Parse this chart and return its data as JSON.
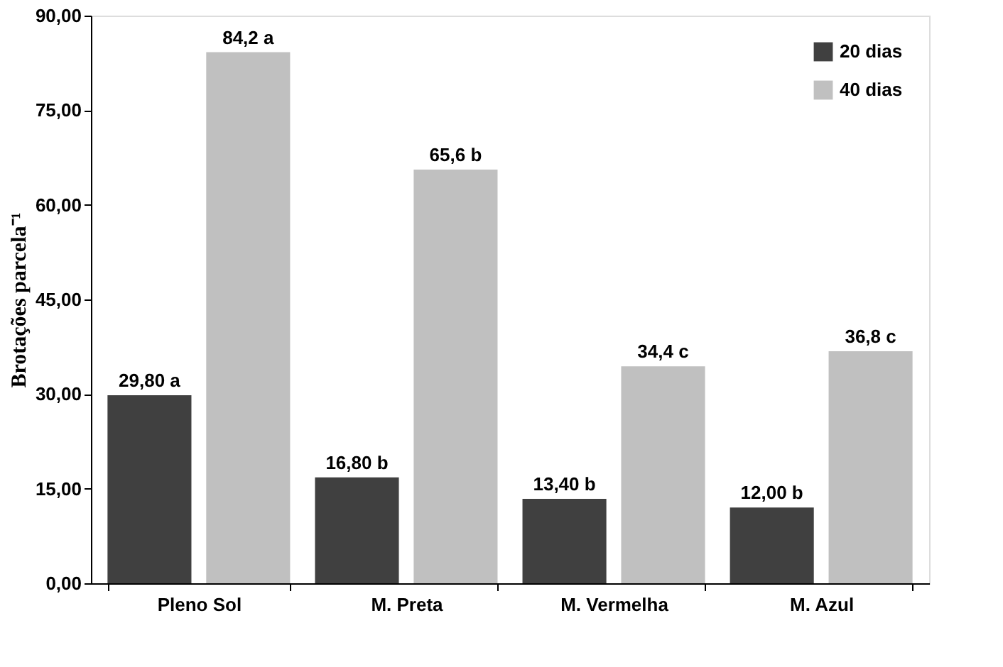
{
  "chart_data": {
    "type": "bar",
    "ylabel": "Brotações parcela⁻¹",
    "categories": [
      "Pleno Sol",
      "M. Preta",
      "M. Vermelha",
      "M. Azul"
    ],
    "series": [
      {
        "name": "20 dias",
        "color": "#404040",
        "values": [
          29.8,
          16.8,
          13.4,
          12.0
        ],
        "value_labels": [
          "29,80 a",
          "16,80 b",
          "13,40 b",
          "12,00 b"
        ]
      },
      {
        "name": "40 dias",
        "color": "#c0c0c0",
        "values": [
          84.2,
          65.6,
          34.4,
          36.8
        ],
        "value_labels": [
          "84,2 a",
          "65,6 b",
          "34,4 c",
          "36,8 c"
        ]
      }
    ],
    "ylim": [
      0,
      90
    ],
    "yticks": [
      {
        "value": 0,
        "label": "0,00"
      },
      {
        "value": 15,
        "label": "15,00"
      },
      {
        "value": 30,
        "label": "30,00"
      },
      {
        "value": 45,
        "label": "45,00"
      },
      {
        "value": 60,
        "label": "60,00"
      },
      {
        "value": 75,
        "label": "75,00"
      },
      {
        "value": 90,
        "label": "90,00"
      }
    ],
    "grid": false,
    "legend": "top right"
  }
}
